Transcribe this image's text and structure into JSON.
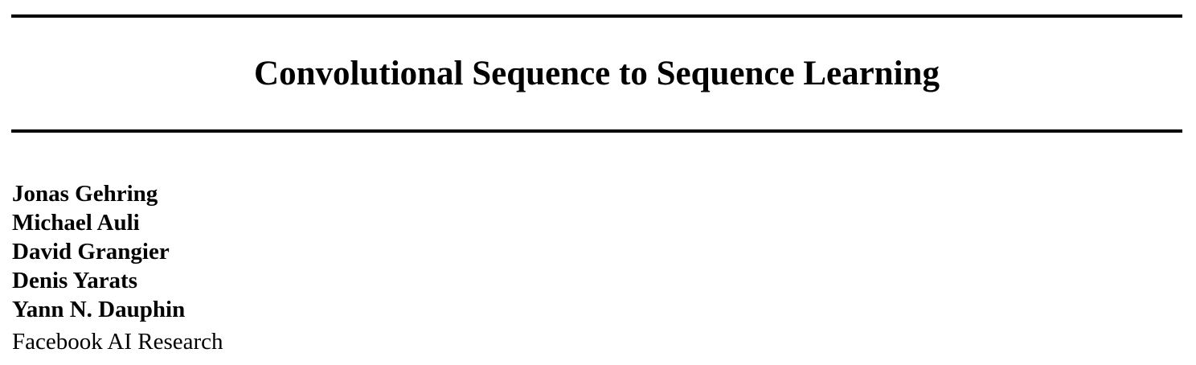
{
  "paper": {
    "title": "Convolutional Sequence to Sequence Learning",
    "authors": [
      "Jonas Gehring",
      "Michael Auli",
      "David Grangier",
      "Denis Yarats",
      "Yann N. Dauphin"
    ],
    "affiliation": "Facebook AI Research"
  }
}
